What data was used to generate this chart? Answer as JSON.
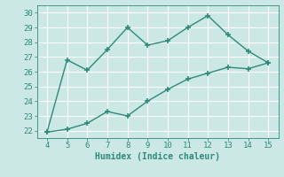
{
  "line1_x": [
    4,
    5,
    6,
    7,
    8,
    9,
    10,
    11,
    12,
    13,
    14,
    15
  ],
  "line1_y": [
    21.9,
    26.8,
    26.1,
    27.5,
    29.0,
    27.8,
    28.1,
    29.0,
    29.8,
    28.5,
    27.4,
    26.6
  ],
  "line2_x": [
    4,
    5,
    6,
    7,
    8,
    9,
    10,
    11,
    12,
    13,
    14,
    15
  ],
  "line2_y": [
    21.9,
    22.1,
    22.5,
    23.3,
    23.0,
    24.0,
    24.8,
    25.5,
    25.9,
    26.3,
    26.2,
    26.6
  ],
  "line_color": "#2d8a7a",
  "bg_color": "#cce8e4",
  "grid_color": "#ffffff",
  "xlabel": "Humidex (Indice chaleur)",
  "ylim": [
    21.5,
    30.5
  ],
  "xlim": [
    3.5,
    15.5
  ],
  "yticks": [
    22,
    23,
    24,
    25,
    26,
    27,
    28,
    29,
    30
  ],
  "xticks": [
    4,
    5,
    6,
    7,
    8,
    9,
    10,
    11,
    12,
    13,
    14,
    15
  ],
  "marker": "+",
  "markersize": 4,
  "linewidth": 1.0,
  "xlabel_fontsize": 7,
  "tick_fontsize": 6.5
}
